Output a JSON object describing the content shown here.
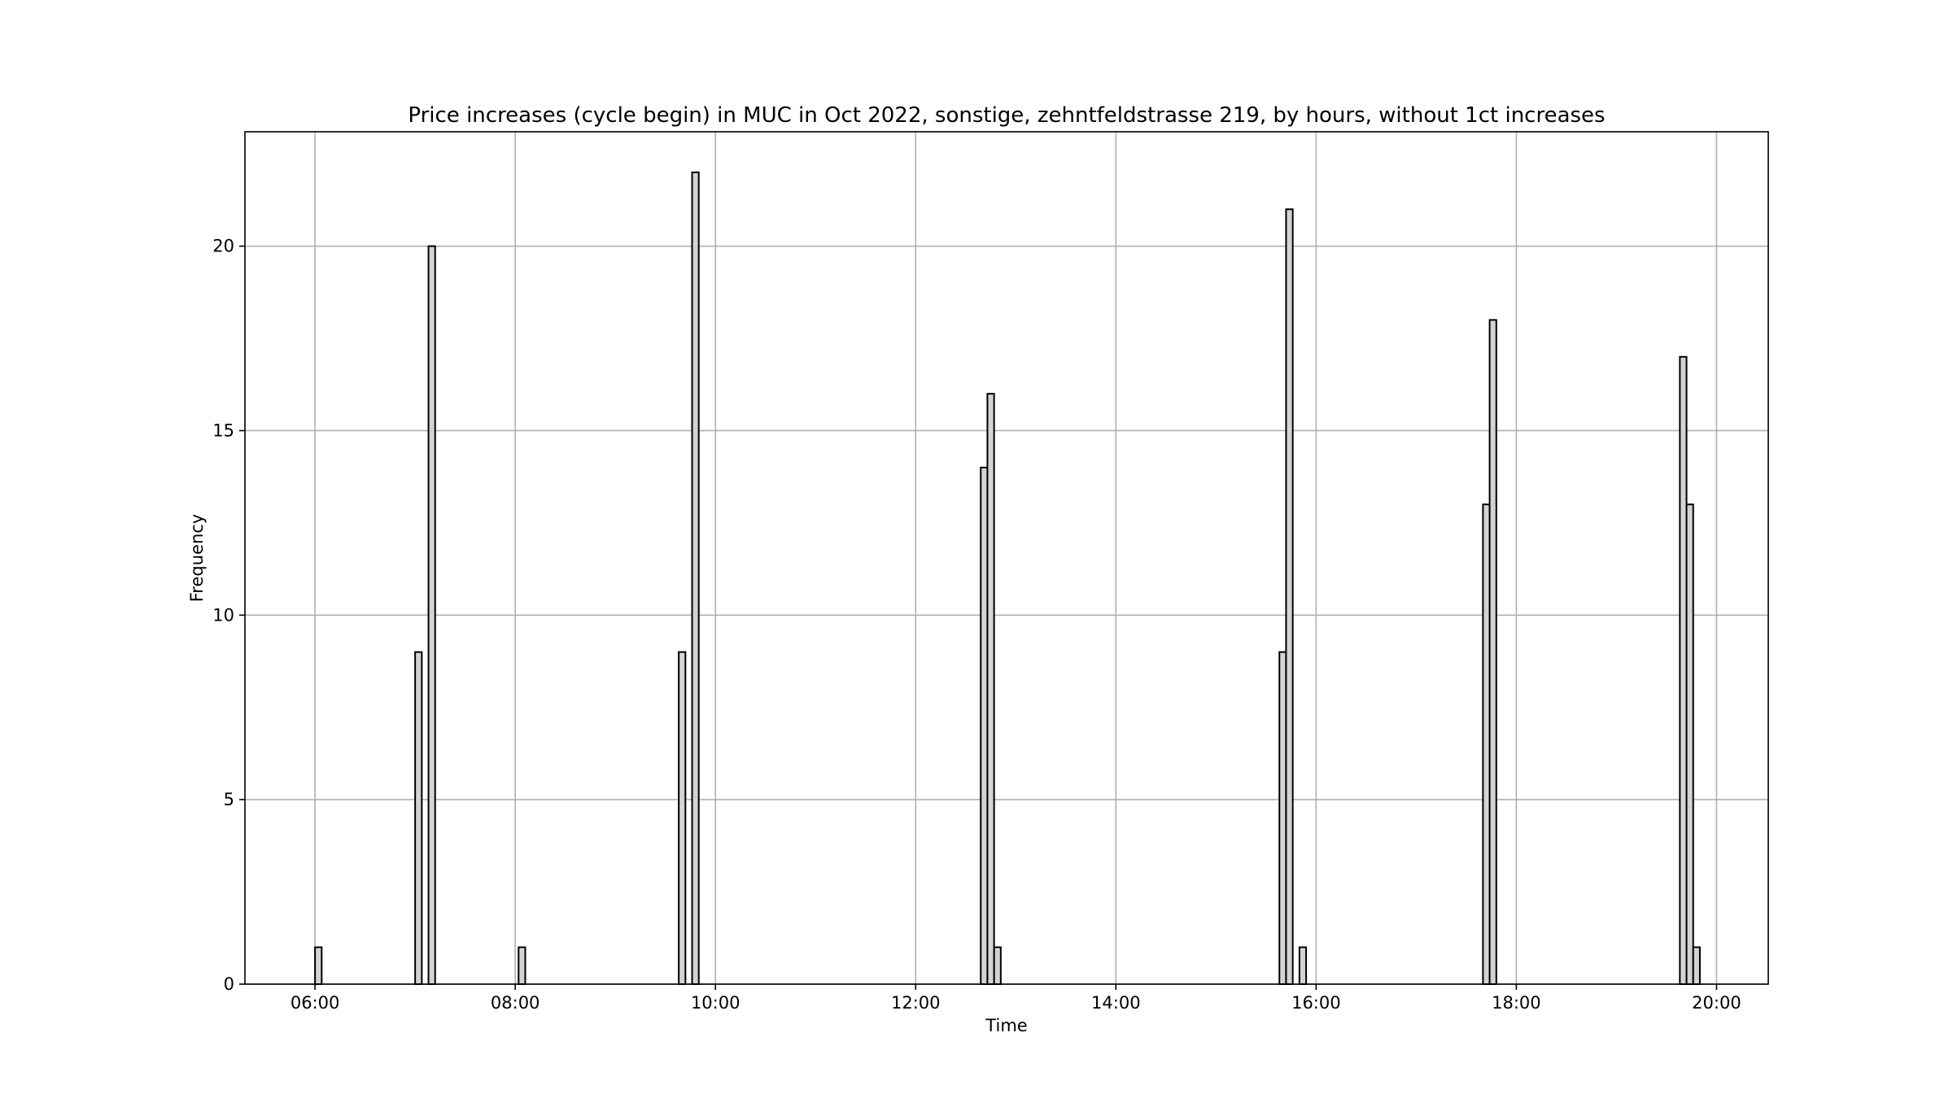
{
  "chart_data": {
    "type": "bar",
    "title": "Price increases (cycle begin) in MUC in Oct 2022, sonstige, zehntfeldstrasse 219, by hours, without 1ct increases",
    "xlabel": "Time",
    "ylabel": "Frequency",
    "x_axis": {
      "kind": "time",
      "range": [
        "05:18",
        "20:31"
      ],
      "ticks": [
        "06:00",
        "08:00",
        "10:00",
        "12:00",
        "14:00",
        "16:00",
        "18:00",
        "20:00"
      ]
    },
    "y_axis": {
      "range": [
        0,
        23.1
      ],
      "ticks": [
        0,
        5,
        10,
        15,
        20
      ]
    },
    "grid": true,
    "bin_width_minutes": 4,
    "bars": [
      {
        "start": "06:00",
        "end": "06:04",
        "value": 1
      },
      {
        "start": "07:00",
        "end": "07:04",
        "value": 9
      },
      {
        "start": "07:08",
        "end": "07:12",
        "value": 20
      },
      {
        "start": "08:02",
        "end": "08:06",
        "value": 1
      },
      {
        "start": "09:38",
        "end": "09:42",
        "value": 9
      },
      {
        "start": "09:46",
        "end": "09:50",
        "value": 22
      },
      {
        "start": "12:39",
        "end": "12:43",
        "value": 14
      },
      {
        "start": "12:43",
        "end": "12:47",
        "value": 16
      },
      {
        "start": "12:47",
        "end": "12:51",
        "value": 1
      },
      {
        "start": "15:38",
        "end": "15:42",
        "value": 9
      },
      {
        "start": "15:42",
        "end": "15:46",
        "value": 21
      },
      {
        "start": "15:50",
        "end": "15:54",
        "value": 1
      },
      {
        "start": "17:40",
        "end": "17:44",
        "value": 13
      },
      {
        "start": "17:44",
        "end": "17:48",
        "value": 18
      },
      {
        "start": "19:38",
        "end": "19:42",
        "value": 17
      },
      {
        "start": "19:42",
        "end": "19:46",
        "value": 13
      },
      {
        "start": "19:46",
        "end": "19:50",
        "value": 1
      }
    ],
    "colors": {
      "bar_fill": "#d3d3d3",
      "bar_edge": "#000000",
      "grid": "#b0b0b0"
    }
  }
}
